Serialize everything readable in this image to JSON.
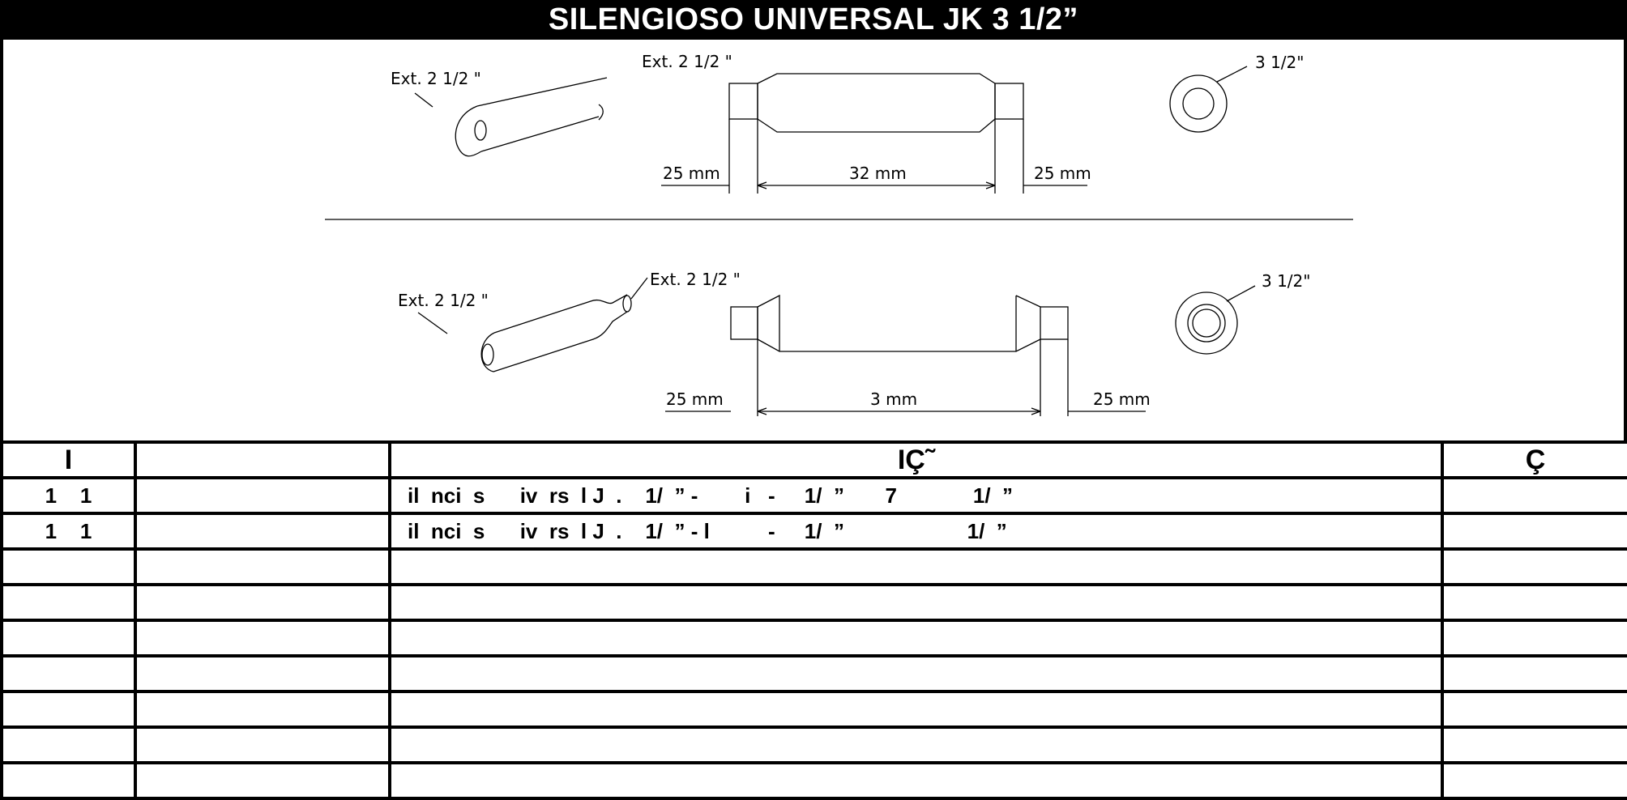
{
  "title": "SILENGIOSO UNIVERSAL JK  3 1/2”",
  "drawing_top": {
    "iso_label": "Ext. 2 1/2 \"",
    "side_label": "Ext. 2 1/2  \"",
    "end_label": "3 1/2\"",
    "dim_left": "25  mm",
    "dim_center": "32    mm",
    "dim_right": "25  mm"
  },
  "drawing_bottom": {
    "iso_label_left": "Ext. 2 1/2 \"",
    "iso_label_right": "Ext. 2 1/2  \"",
    "end_label": "3 1/2\"",
    "dim_left": "25  mm",
    "dim_center": "3     mm",
    "dim_right": "25  mm"
  },
  "table": {
    "headers": [
      "I",
      "",
      "IÇ˜",
      "Ç"
    ],
    "rows": [
      [
        "1    1",
        "",
        "il  nci  s      iv  rs  l J  .    1/  ” -        i   -     1/  ”       7             1/  ”",
        ""
      ],
      [
        "1    1",
        "",
        "il  nci  s      iv  rs  l J  .    1/  ” - l          -     1/  ”                     1/  ”",
        ""
      ],
      [
        "",
        "",
        "",
        ""
      ],
      [
        "",
        "",
        "",
        ""
      ],
      [
        "",
        "",
        "",
        ""
      ],
      [
        "",
        "",
        "",
        ""
      ],
      [
        "",
        "",
        "",
        ""
      ],
      [
        "",
        "",
        "",
        ""
      ],
      [
        "",
        "",
        "",
        ""
      ]
    ]
  }
}
